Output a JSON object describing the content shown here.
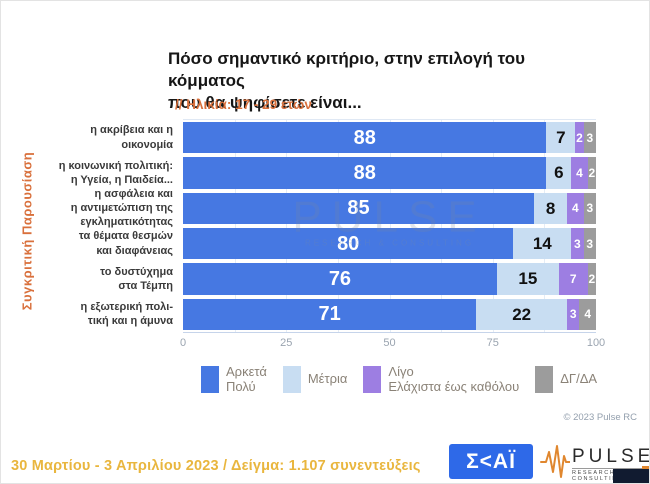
{
  "side_label": "Συγκριτική  Παρουσίαση",
  "watermark": {
    "line1": "PULSE",
    "line2": "RESEARCH & CONSULTING"
  },
  "chart_data": {
    "type": "bar",
    "orientation": "horizontal",
    "stacked": true,
    "title": "Πόσο σημαντικό κριτήριο, στην επιλογή του κόμματος\nπου θα ψηφίσετε είναι...",
    "subtitle": "// Ηλικία: 17 - 29 ετών",
    "categories": [
      "η ακρίβεια και η\nοικονομία",
      "η κοινωνική πολιτική:\nη Υγεία, η Παιδεία...",
      "η ασφάλεια και\nη αντιμετώπιση της\nεγκληματικότητας",
      "τα θέματα θεσμών\nκαι διαφάνειας",
      "το δυστύχημα\nστα Τέμπη",
      "η εξωτερική πολι-\nτική και η άμυνα"
    ],
    "series": [
      {
        "name": "Αρκετά\nΠολύ",
        "color": "#4678e2",
        "values": [
          88,
          88,
          85,
          80,
          76,
          71
        ]
      },
      {
        "name": "Μέτρια",
        "color": "#c8ddf2",
        "values": [
          7,
          6,
          8,
          14,
          15,
          22
        ]
      },
      {
        "name": "Λίγο\nΕλάχιστα έως καθόλου",
        "color": "#9d7ee2",
        "values": [
          2,
          4,
          4,
          3,
          7,
          3
        ]
      },
      {
        "name": "ΔΓ/ΔΑ",
        "color": "#9c9c9c",
        "values": [
          3,
          2,
          3,
          3,
          2,
          4
        ]
      }
    ],
    "xlim": [
      0,
      100
    ],
    "xticks": [
      0,
      25,
      50,
      75,
      100
    ],
    "grid": true,
    "legend_position": "bottom"
  },
  "copyright": "© 2023 Pulse RC",
  "footer": {
    "survey_info": "30 Μαρτίου - 3 Απριλίου 2023  /  Δείγμα:  1.107 συνεντεύξεις",
    "skai_logo": "Σ<ΑΪ",
    "pulse_logo": {
      "name": "PULSE",
      "tagline": "RESEARCH & CONSULTING"
    }
  }
}
